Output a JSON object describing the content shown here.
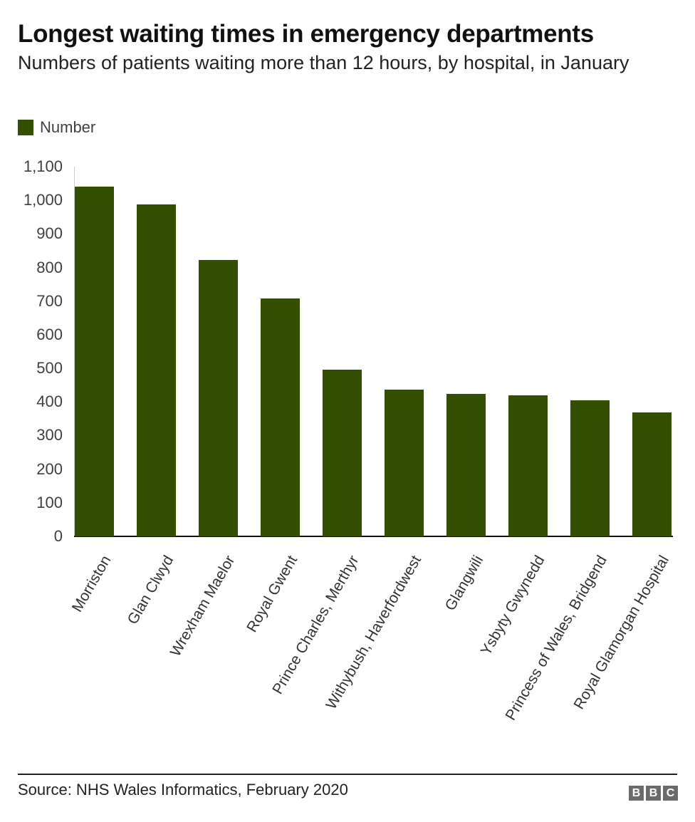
{
  "header": {
    "title": "Longest waiting times in emergency departments",
    "subtitle": "Numbers of patients waiting more than 12 hours, by hospital, in January"
  },
  "legend": {
    "label": "Number",
    "color": "#354f00"
  },
  "footer": {
    "source": "Source: NHS Wales Informatics, February 2020",
    "logo_letters": [
      "B",
      "B",
      "C"
    ]
  },
  "colors": {
    "bar": "#354f00",
    "axis": "#111111",
    "text": "#404040"
  },
  "chart_data": {
    "type": "bar",
    "title": "Longest waiting times in emergency departments",
    "subtitle": "Numbers of patients waiting more than 12 hours, by hospital, in January",
    "xlabel": "",
    "ylabel": "",
    "ylim": [
      0,
      1100
    ],
    "yticks": [
      0,
      100,
      200,
      300,
      400,
      500,
      600,
      700,
      800,
      900,
      1000,
      1100
    ],
    "ytick_labels": [
      "0",
      "100",
      "200",
      "300",
      "400",
      "500",
      "600",
      "700",
      "800",
      "900",
      "1,000",
      "1,100"
    ],
    "grid": false,
    "legend_position": "top-left",
    "categories": [
      "Morriston",
      "Glan Clwyd",
      "Wrexham Maelor",
      "Royal Gwent",
      "Prince Charles, Merthyr",
      "Withybush, Haverfordwest",
      "Glangwili",
      "Ysbyty Gwynedd",
      "Princess of Wales, Bridgend",
      "Royal Glamorgan Hospital"
    ],
    "series": [
      {
        "name": "Number",
        "values": [
          1040,
          987,
          823,
          708,
          496,
          436,
          424,
          420,
          404,
          369
        ]
      }
    ]
  }
}
